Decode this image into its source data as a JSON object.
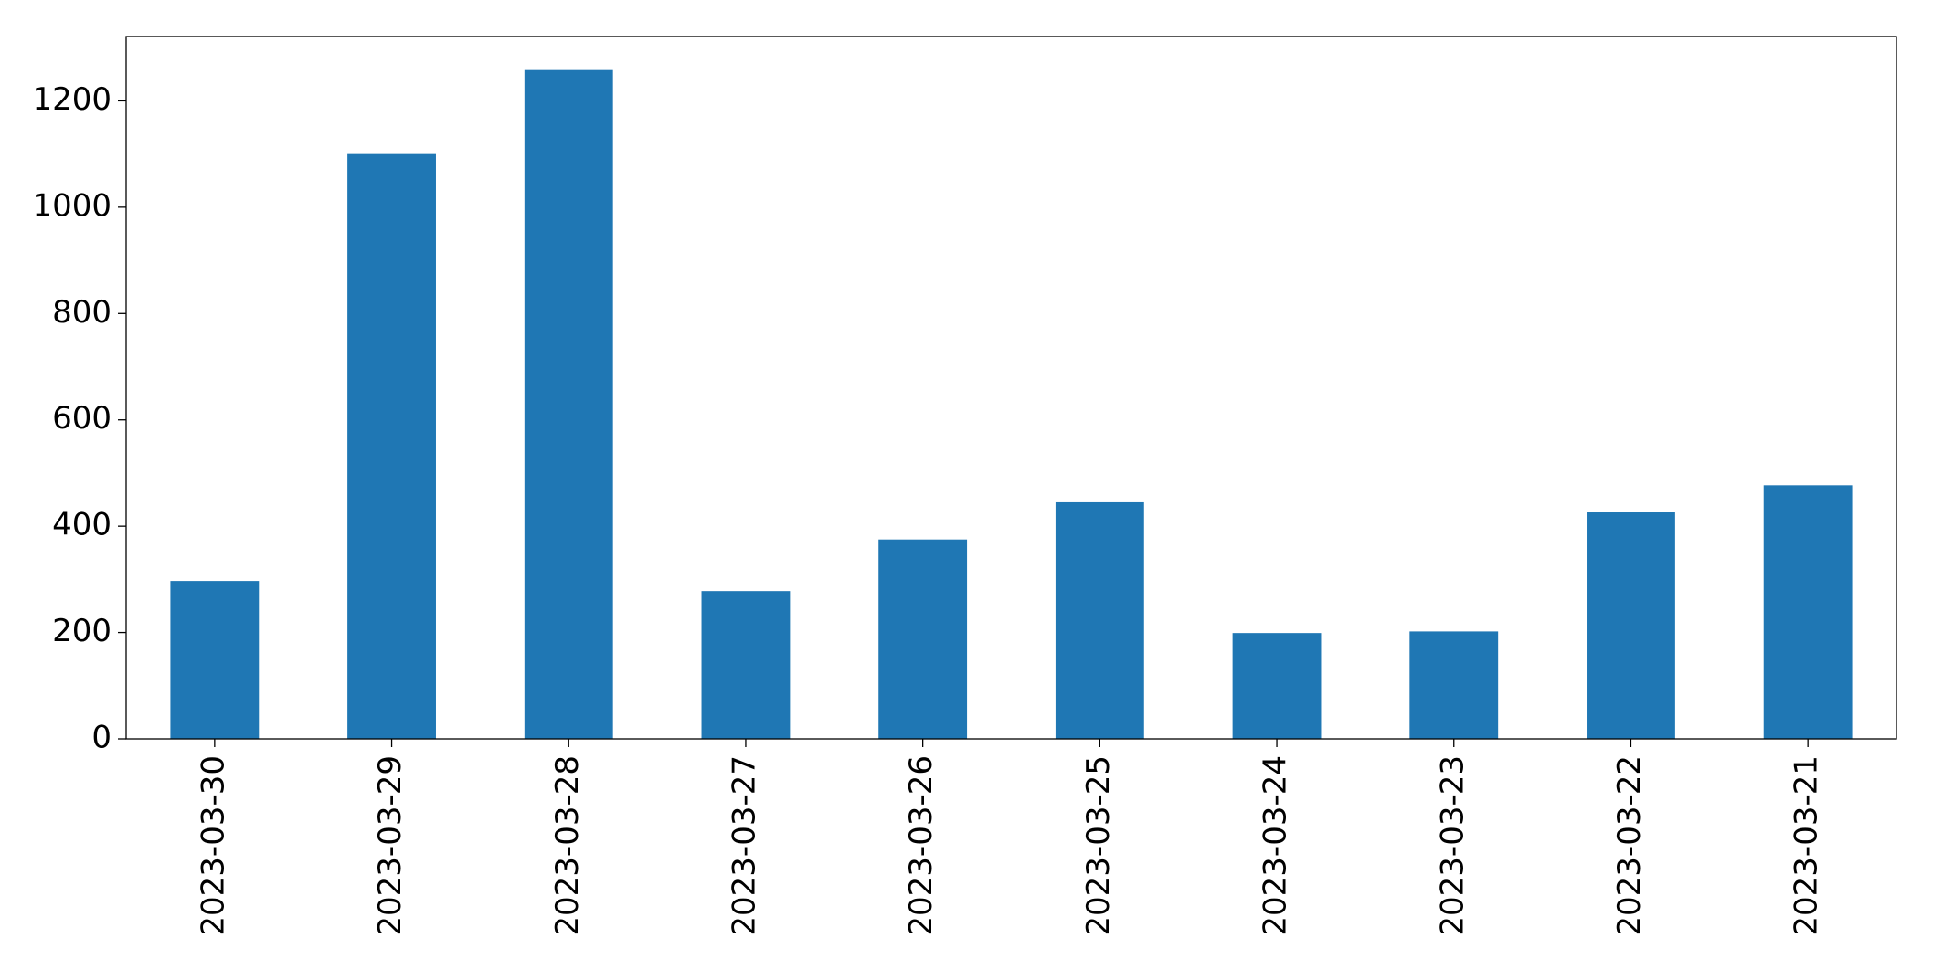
{
  "chart_data": {
    "type": "bar",
    "categories": [
      "2023-03-30",
      "2023-03-29",
      "2023-03-28",
      "2023-03-27",
      "2023-03-26",
      "2023-03-25",
      "2023-03-24",
      "2023-03-23",
      "2023-03-22",
      "2023-03-21"
    ],
    "values": [
      297,
      1100,
      1258,
      278,
      375,
      445,
      199,
      202,
      426,
      477
    ],
    "color": "#1f77b4",
    "ylim": [
      0,
      1321
    ],
    "yticks": [
      0,
      200,
      400,
      600,
      800,
      1000,
      1200
    ],
    "grid": false
  }
}
